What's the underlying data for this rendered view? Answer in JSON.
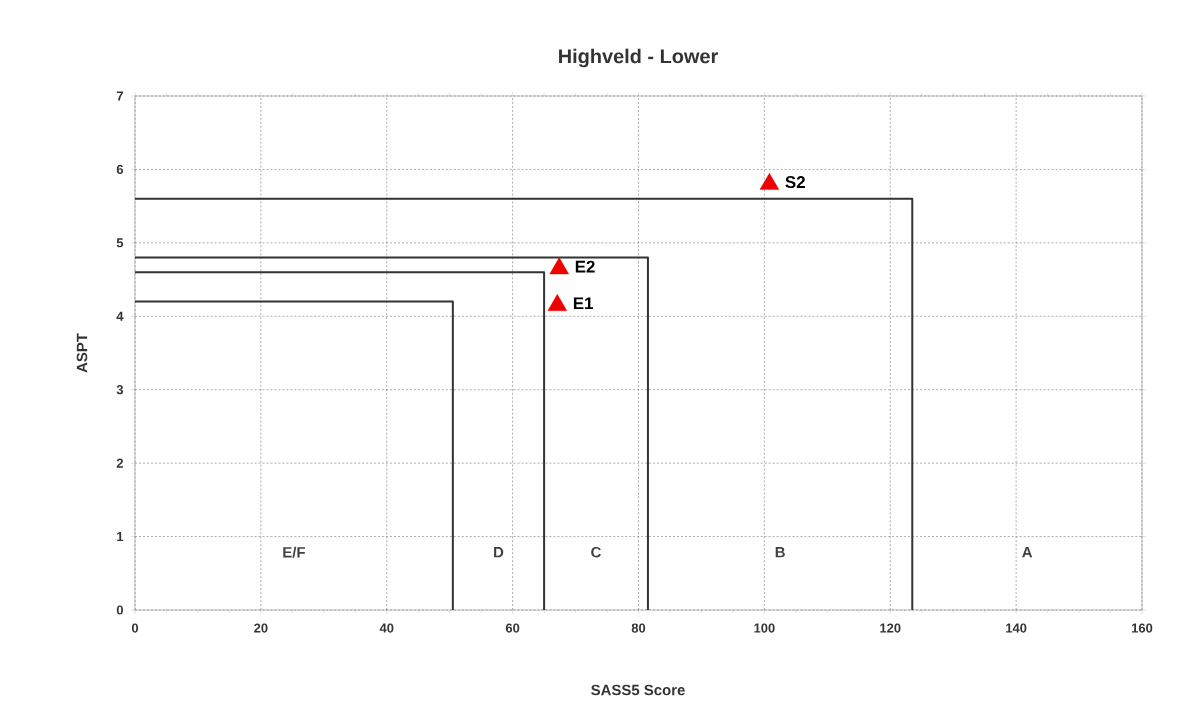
{
  "chart_data": {
    "type": "line",
    "title": "Highveld - Lower",
    "xlabel": "SASS5 Score",
    "ylabel": "ASPT",
    "xlim": [
      0,
      160
    ],
    "ylim": [
      0,
      7
    ],
    "xticks": [
      0,
      20,
      40,
      60,
      80,
      100,
      120,
      140,
      160
    ],
    "yticks": [
      0,
      1,
      2,
      3,
      4,
      5,
      6,
      7
    ],
    "grid": true,
    "series": [
      {
        "color": "#333333",
        "marker": "none",
        "x": [
          0,
          50.5,
          50.5
        ],
        "values": [
          4.2,
          4.2,
          0
        ]
      },
      {
        "color": "#333333",
        "marker": "none",
        "x": [
          0,
          65,
          65
        ],
        "values": [
          4.6,
          4.6,
          0
        ]
      },
      {
        "color": "#333333",
        "marker": "none",
        "x": [
          0,
          81.5,
          81.5
        ],
        "values": [
          4.8,
          4.8,
          0
        ]
      },
      {
        "color": "#333333",
        "marker": "none",
        "x": [
          0,
          123.5,
          123.5
        ],
        "values": [
          5.6,
          5.6,
          0
        ]
      },
      {
        "type": "scatter",
        "color": "#ee0000",
        "marker": "triangle",
        "x": [
          100.8,
          67.4,
          67.1
        ],
        "values": [
          5.8,
          4.65,
          4.15
        ]
      }
    ],
    "annotations": [
      {
        "text": "S2",
        "x": 100.8,
        "y": 5.8
      },
      {
        "text": "E2",
        "x": 67.4,
        "y": 4.65
      },
      {
        "text": "E1",
        "x": 67.1,
        "y": 4.15
      },
      "E/F",
      "D",
      "C",
      "B",
      "A"
    ]
  }
}
